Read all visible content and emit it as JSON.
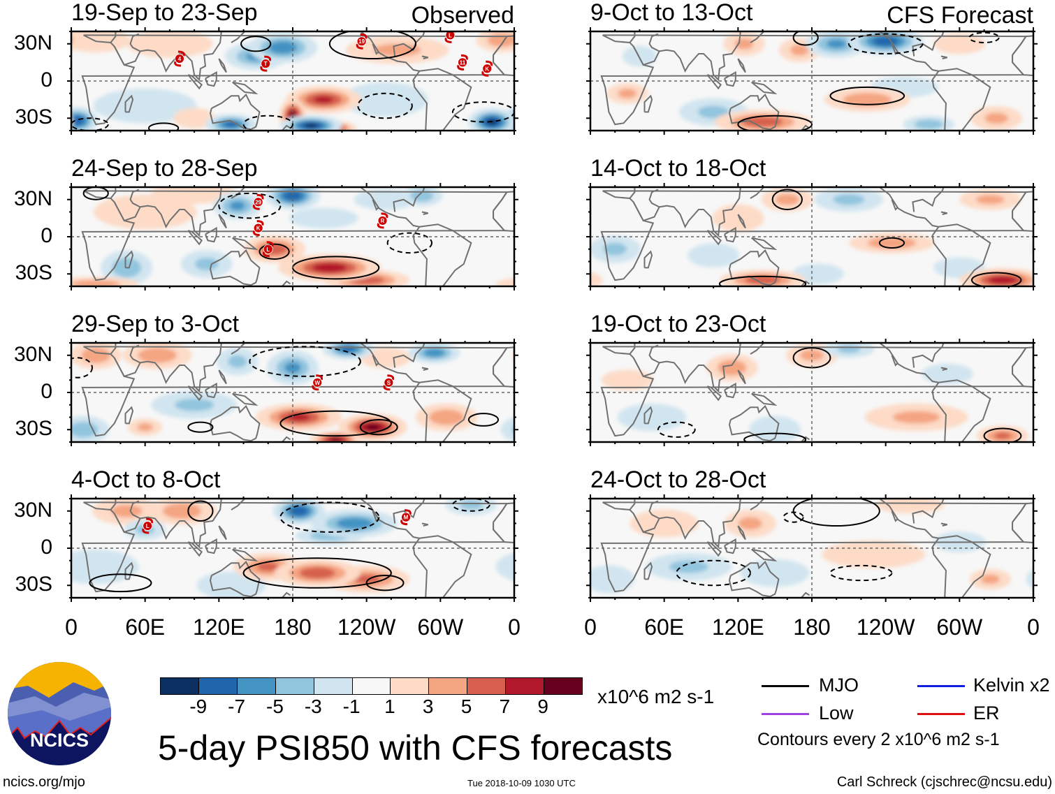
{
  "figure": {
    "title": "5-day PSI850 with CFS forecasts",
    "observed_label": "Observed",
    "forecast_label": "CFS Forecast",
    "lat_labels": [
      "30N",
      "0",
      "30S"
    ],
    "lon_labels": [
      "0",
      "60E",
      "120E",
      "180",
      "120W",
      "60W",
      "0"
    ],
    "lon_values": [
      0,
      60,
      120,
      180,
      240,
      300,
      360
    ],
    "website": "ncics.org/mjo",
    "timestamp": "Tue 2018-10-09 1030 UTC",
    "credit": "Carl Schreck (cjschrec@ncsu.edu)",
    "logo_text": "NCICS"
  },
  "colorbar": {
    "colors": [
      "#0a2f60",
      "#2166ac",
      "#4393c3",
      "#92c5de",
      "#d1e5f0",
      "#f7f7f7",
      "#fddbc7",
      "#f4a582",
      "#d6604d",
      "#b2182b",
      "#67001f"
    ],
    "labels": [
      "-9",
      "-7",
      "-5",
      "-3",
      "-1",
      "1",
      "3",
      "5",
      "7",
      "9"
    ],
    "units": "x10^6 m2 s-1"
  },
  "legend": {
    "items": [
      {
        "label": "MJO",
        "color": "#000000"
      },
      {
        "label": "Kelvin x2",
        "color": "#1020e0"
      },
      {
        "label": "Low",
        "color": "#a040e0"
      },
      {
        "label": "ER",
        "color": "#e01010"
      }
    ],
    "note": "Contours every 2 x10^6 m2 s-1"
  },
  "chart_data": {
    "type": "heatmap",
    "lon_range": [
      0,
      360
    ],
    "lat_range": [
      -40,
      40
    ],
    "panels": [
      {
        "title": "19-Sep to 23-Sep",
        "kind": "observed",
        "anomalies": [
          [
            150,
            20,
            18,
            8,
            -6
          ],
          [
            172,
            27,
            20,
            9,
            -7
          ],
          [
            180,
            -28,
            8,
            10,
            10
          ],
          [
            205,
            -15,
            22,
            8,
            8
          ],
          [
            195,
            -36,
            18,
            6,
            -10
          ],
          [
            130,
            -35,
            15,
            6,
            -8
          ],
          [
            5,
            -32,
            12,
            8,
            -9
          ],
          [
            342,
            -33,
            14,
            8,
            -10
          ],
          [
            80,
            30,
            25,
            8,
            3
          ],
          [
            20,
            33,
            20,
            7,
            3
          ],
          [
            265,
            25,
            30,
            8,
            4
          ],
          [
            350,
            33,
            15,
            7,
            5
          ],
          [
            60,
            -20,
            30,
            10,
            -3
          ],
          [
            255,
            -15,
            25,
            10,
            -3
          ],
          [
            215,
            -38,
            12,
            4,
            8
          ],
          [
            100,
            -30,
            12,
            6,
            3
          ]
        ],
        "contours": [
          [
            150,
            30,
            12,
            6,
            1
          ],
          [
            245,
            30,
            35,
            12,
            1
          ],
          [
            15,
            -35,
            15,
            5,
            -1
          ],
          [
            75,
            -38,
            12,
            4,
            1
          ],
          [
            255,
            -20,
            22,
            10,
            -1
          ],
          [
            335,
            -25,
            25,
            8,
            -1
          ],
          [
            160,
            -35,
            20,
            7,
            -1
          ]
        ],
        "storms": [
          [
            "4",
            88,
            18
          ],
          [
            "T",
            158,
            14
          ],
          [
            "19",
            236,
            32
          ],
          [
            "L",
            308,
            37
          ],
          [
            "11",
            318,
            15
          ],
          [
            "K",
            338,
            10
          ]
        ]
      },
      {
        "title": "24-Sep to 28-Sep",
        "kind": "observed",
        "anomalies": [
          [
            135,
            25,
            14,
            8,
            -6
          ],
          [
            180,
            33,
            16,
            8,
            -9
          ],
          [
            205,
            15,
            20,
            6,
            -3
          ],
          [
            255,
            30,
            18,
            6,
            -3
          ],
          [
            285,
            33,
            12,
            6,
            -5
          ],
          [
            210,
            -25,
            30,
            8,
            9
          ],
          [
            165,
            -10,
            18,
            8,
            7
          ],
          [
            240,
            -35,
            25,
            6,
            7
          ],
          [
            45,
            -25,
            15,
            10,
            -5
          ],
          [
            110,
            -22,
            15,
            8,
            -4
          ],
          [
            100,
            35,
            25,
            6,
            3
          ],
          [
            20,
            -38,
            25,
            4,
            5
          ],
          [
            60,
            20,
            30,
            10,
            1.5
          ]
        ],
        "contours": [
          [
            145,
            25,
            25,
            10,
            -1
          ],
          [
            215,
            -25,
            35,
            9,
            1
          ],
          [
            165,
            -12,
            12,
            6,
            1
          ],
          [
            20,
            35,
            10,
            5,
            1
          ],
          [
            275,
            -5,
            18,
            8,
            -1
          ]
        ],
        "storms": [
          [
            "29",
            152,
            28
          ],
          [
            "K",
            152,
            7
          ],
          [
            "R",
            253,
            13
          ],
          [
            "L",
            160,
            -10
          ]
        ]
      },
      {
        "title": "29-Sep to 3-Oct",
        "kind": "observed",
        "anomalies": [
          [
            20,
            30,
            15,
            8,
            5
          ],
          [
            70,
            30,
            20,
            8,
            5
          ],
          [
            135,
            25,
            12,
            8,
            -4
          ],
          [
            180,
            20,
            15,
            10,
            -6
          ],
          [
            225,
            35,
            15,
            6,
            -8
          ],
          [
            295,
            32,
            15,
            6,
            -7
          ],
          [
            255,
            28,
            15,
            6,
            3
          ],
          [
            185,
            -20,
            25,
            8,
            8
          ],
          [
            245,
            -28,
            20,
            8,
            10
          ],
          [
            215,
            -38,
            15,
            5,
            10
          ],
          [
            100,
            -10,
            25,
            8,
            -4
          ],
          [
            10,
            -30,
            15,
            8,
            -5
          ],
          [
            305,
            -20,
            18,
            8,
            5
          ],
          [
            60,
            -28,
            10,
            5,
            4
          ]
        ],
        "contours": [
          [
            190,
            25,
            45,
            12,
            -1
          ],
          [
            215,
            -25,
            45,
            10,
            1
          ],
          [
            250,
            -28,
            15,
            6,
            1
          ],
          [
            335,
            -22,
            12,
            5,
            1
          ],
          [
            105,
            -28,
            10,
            4,
            1
          ],
          [
            5,
            20,
            12,
            8,
            -1
          ]
        ],
        "storms": [
          [
            "W",
            200,
            8
          ],
          [
            "S",
            258,
            8
          ]
        ]
      },
      {
        "title": "4-Oct to 8-Oct",
        "kind": "observed",
        "anomalies": [
          [
            45,
            30,
            20,
            8,
            4
          ],
          [
            90,
            30,
            20,
            8,
            5
          ],
          [
            185,
            30,
            15,
            8,
            -9
          ],
          [
            230,
            20,
            25,
            8,
            -7
          ],
          [
            210,
            10,
            20,
            5,
            -5
          ],
          [
            160,
            -15,
            20,
            8,
            6
          ],
          [
            200,
            -20,
            25,
            8,
            7
          ],
          [
            240,
            -25,
            25,
            8,
            6
          ],
          [
            20,
            -15,
            25,
            10,
            -3
          ],
          [
            130,
            -30,
            20,
            8,
            -3
          ],
          [
            325,
            35,
            15,
            6,
            -4
          ],
          [
            60,
            15,
            12,
            6,
            -4
          ]
        ],
        "contours": [
          [
            210,
            25,
            40,
            12,
            -1
          ],
          [
            105,
            30,
            10,
            8,
            1
          ],
          [
            200,
            -20,
            60,
            12,
            1
          ],
          [
            255,
            -28,
            15,
            6,
            1
          ],
          [
            40,
            -28,
            25,
            7,
            1
          ],
          [
            325,
            35,
            15,
            5,
            -1
          ]
        ],
        "storms": [
          [
            "L",
            62,
            18
          ],
          [
            "M",
            272,
            25
          ]
        ]
      },
      {
        "title": "9-Oct to 13-Oct",
        "kind": "forecast",
        "anomalies": [
          [
            240,
            32,
            22,
            8,
            -9
          ],
          [
            200,
            30,
            18,
            8,
            -6
          ],
          [
            170,
            25,
            12,
            7,
            4
          ],
          [
            125,
            30,
            12,
            7,
            4
          ],
          [
            30,
            -10,
            12,
            6,
            4
          ],
          [
            140,
            -33,
            28,
            7,
            7
          ],
          [
            225,
            -15,
            25,
            7,
            5
          ],
          [
            100,
            -25,
            20,
            8,
            -4
          ],
          [
            255,
            -5,
            20,
            6,
            -3
          ],
          [
            300,
            30,
            15,
            6,
            3
          ],
          [
            40,
            20,
            10,
            6,
            -3
          ],
          [
            330,
            -30,
            15,
            7,
            4
          ],
          [
            275,
            -35,
            15,
            5,
            -5
          ]
        ],
        "contours": [
          [
            225,
            -12,
            30,
            7,
            1
          ],
          [
            150,
            -35,
            30,
            7,
            1
          ],
          [
            175,
            35,
            10,
            6,
            1
          ],
          [
            240,
            30,
            30,
            8,
            -1
          ],
          [
            320,
            35,
            12,
            4,
            -1
          ]
        ],
        "storms": []
      },
      {
        "title": "14-Oct to 18-Oct",
        "kind": "forecast",
        "anomalies": [
          [
            160,
            30,
            15,
            7,
            4
          ],
          [
            210,
            30,
            20,
            7,
            -4
          ],
          [
            325,
            30,
            18,
            6,
            4
          ],
          [
            245,
            -5,
            25,
            6,
            5
          ],
          [
            140,
            -35,
            25,
            6,
            7
          ],
          [
            335,
            -35,
            25,
            7,
            9
          ],
          [
            20,
            -10,
            15,
            8,
            -4
          ],
          [
            100,
            -15,
            15,
            7,
            -3
          ],
          [
            185,
            -30,
            15,
            6,
            -3
          ],
          [
            300,
            -25,
            15,
            6,
            -3
          ],
          [
            120,
            15,
            15,
            8,
            3
          ]
        ],
        "contours": [
          [
            160,
            30,
            12,
            8,
            1
          ],
          [
            245,
            -5,
            10,
            4,
            1
          ],
          [
            140,
            -38,
            35,
            6,
            1
          ],
          [
            330,
            -35,
            20,
            6,
            1
          ]
        ],
        "storms": []
      },
      {
        "title": "19-Oct to 23-Oct",
        "kind": "forecast",
        "anomalies": [
          [
            115,
            20,
            15,
            8,
            5
          ],
          [
            180,
            30,
            15,
            7,
            4
          ],
          [
            210,
            35,
            15,
            5,
            -4
          ],
          [
            265,
            -20,
            30,
            8,
            4
          ],
          [
            335,
            -35,
            15,
            6,
            6
          ],
          [
            50,
            -20,
            20,
            8,
            -3
          ],
          [
            150,
            -30,
            15,
            8,
            -3
          ],
          [
            290,
            15,
            15,
            6,
            -3
          ],
          [
            30,
            10,
            15,
            6,
            2
          ]
        ],
        "contours": [
          [
            180,
            28,
            15,
            8,
            1
          ],
          [
            150,
            -38,
            25,
            5,
            1
          ],
          [
            335,
            -35,
            15,
            6,
            1
          ],
          [
            70,
            -30,
            15,
            6,
            -1
          ]
        ],
        "storms": []
      },
      {
        "title": "24-Oct to 28-Oct",
        "kind": "forecast",
        "anomalies": [
          [
            130,
            20,
            15,
            8,
            4
          ],
          [
            60,
            20,
            20,
            8,
            2
          ],
          [
            80,
            -15,
            25,
            8,
            -4
          ],
          [
            150,
            -20,
            20,
            8,
            -3
          ],
          [
            230,
            -5,
            30,
            8,
            3
          ],
          [
            325,
            -25,
            12,
            6,
            4
          ],
          [
            300,
            5,
            15,
            6,
            -2
          ],
          [
            260,
            35,
            20,
            5,
            2
          ],
          [
            15,
            -25,
            15,
            8,
            -2
          ]
        ],
        "contours": [
          [
            200,
            30,
            35,
            12,
            1
          ],
          [
            100,
            -20,
            30,
            10,
            -1
          ],
          [
            220,
            -20,
            25,
            6,
            -1
          ],
          [
            165,
            25,
            8,
            4,
            -1
          ]
        ],
        "storms": []
      }
    ]
  }
}
